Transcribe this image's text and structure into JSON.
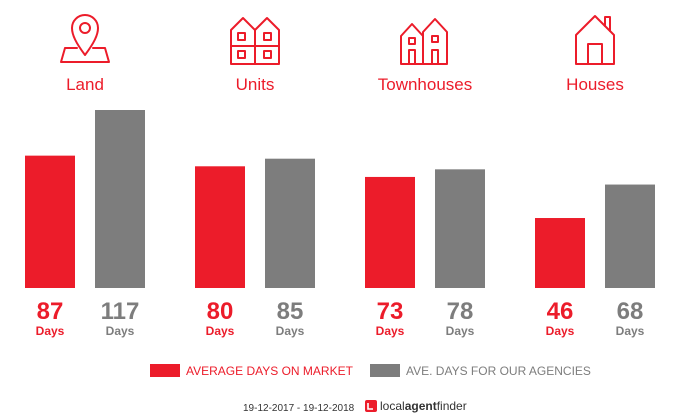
{
  "chart_data": {
    "type": "bar",
    "categories": [
      "Land",
      "Units",
      "Townhouses",
      "Houses"
    ],
    "category_icons": [
      "map-pin-icon",
      "apartment-building-icon",
      "townhouse-icon",
      "house-icon"
    ],
    "series": [
      {
        "name": "AVERAGE DAYS ON MARKET",
        "values": [
          87,
          80,
          73,
          46
        ],
        "color": "#ec1c2a"
      },
      {
        "name": "AVE. DAYS FOR OUR AGENCIES",
        "values": [
          117,
          85,
          78,
          68
        ],
        "color": "#7d7d7d"
      }
    ],
    "unit_label": "Days",
    "ylim": [
      0,
      117
    ],
    "grid": false,
    "legend_position": "bottom"
  },
  "footer": {
    "date_range": "19-12-2017 - 19-12-2018",
    "brand_local": "local",
    "brand_agent": "agent",
    "brand_finder": "finder"
  },
  "colors": {
    "red": "#ec1c2a",
    "gray": "#7d7d7d"
  }
}
